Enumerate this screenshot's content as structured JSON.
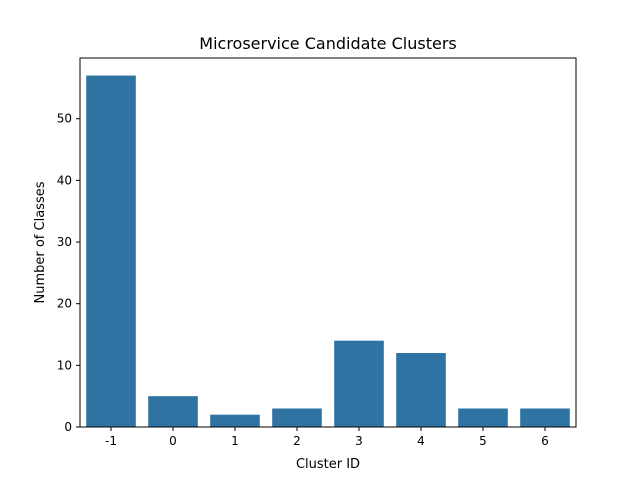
{
  "chart_data": {
    "type": "bar",
    "title": "Microservice Candidate Clusters",
    "xlabel": "Cluster ID",
    "ylabel": "Number of Classes",
    "categories": [
      "-1",
      "0",
      "1",
      "2",
      "3",
      "4",
      "5",
      "6"
    ],
    "values": [
      57,
      5,
      2,
      3,
      14,
      12,
      3,
      3
    ],
    "ylim": [
      0,
      59.85
    ],
    "yticks": [
      0,
      10,
      20,
      30,
      40,
      50
    ],
    "grid": false,
    "legend": "none",
    "colors": {
      "bar": "#2f73a3",
      "axes": "#000000",
      "background": "#ffffff"
    }
  }
}
